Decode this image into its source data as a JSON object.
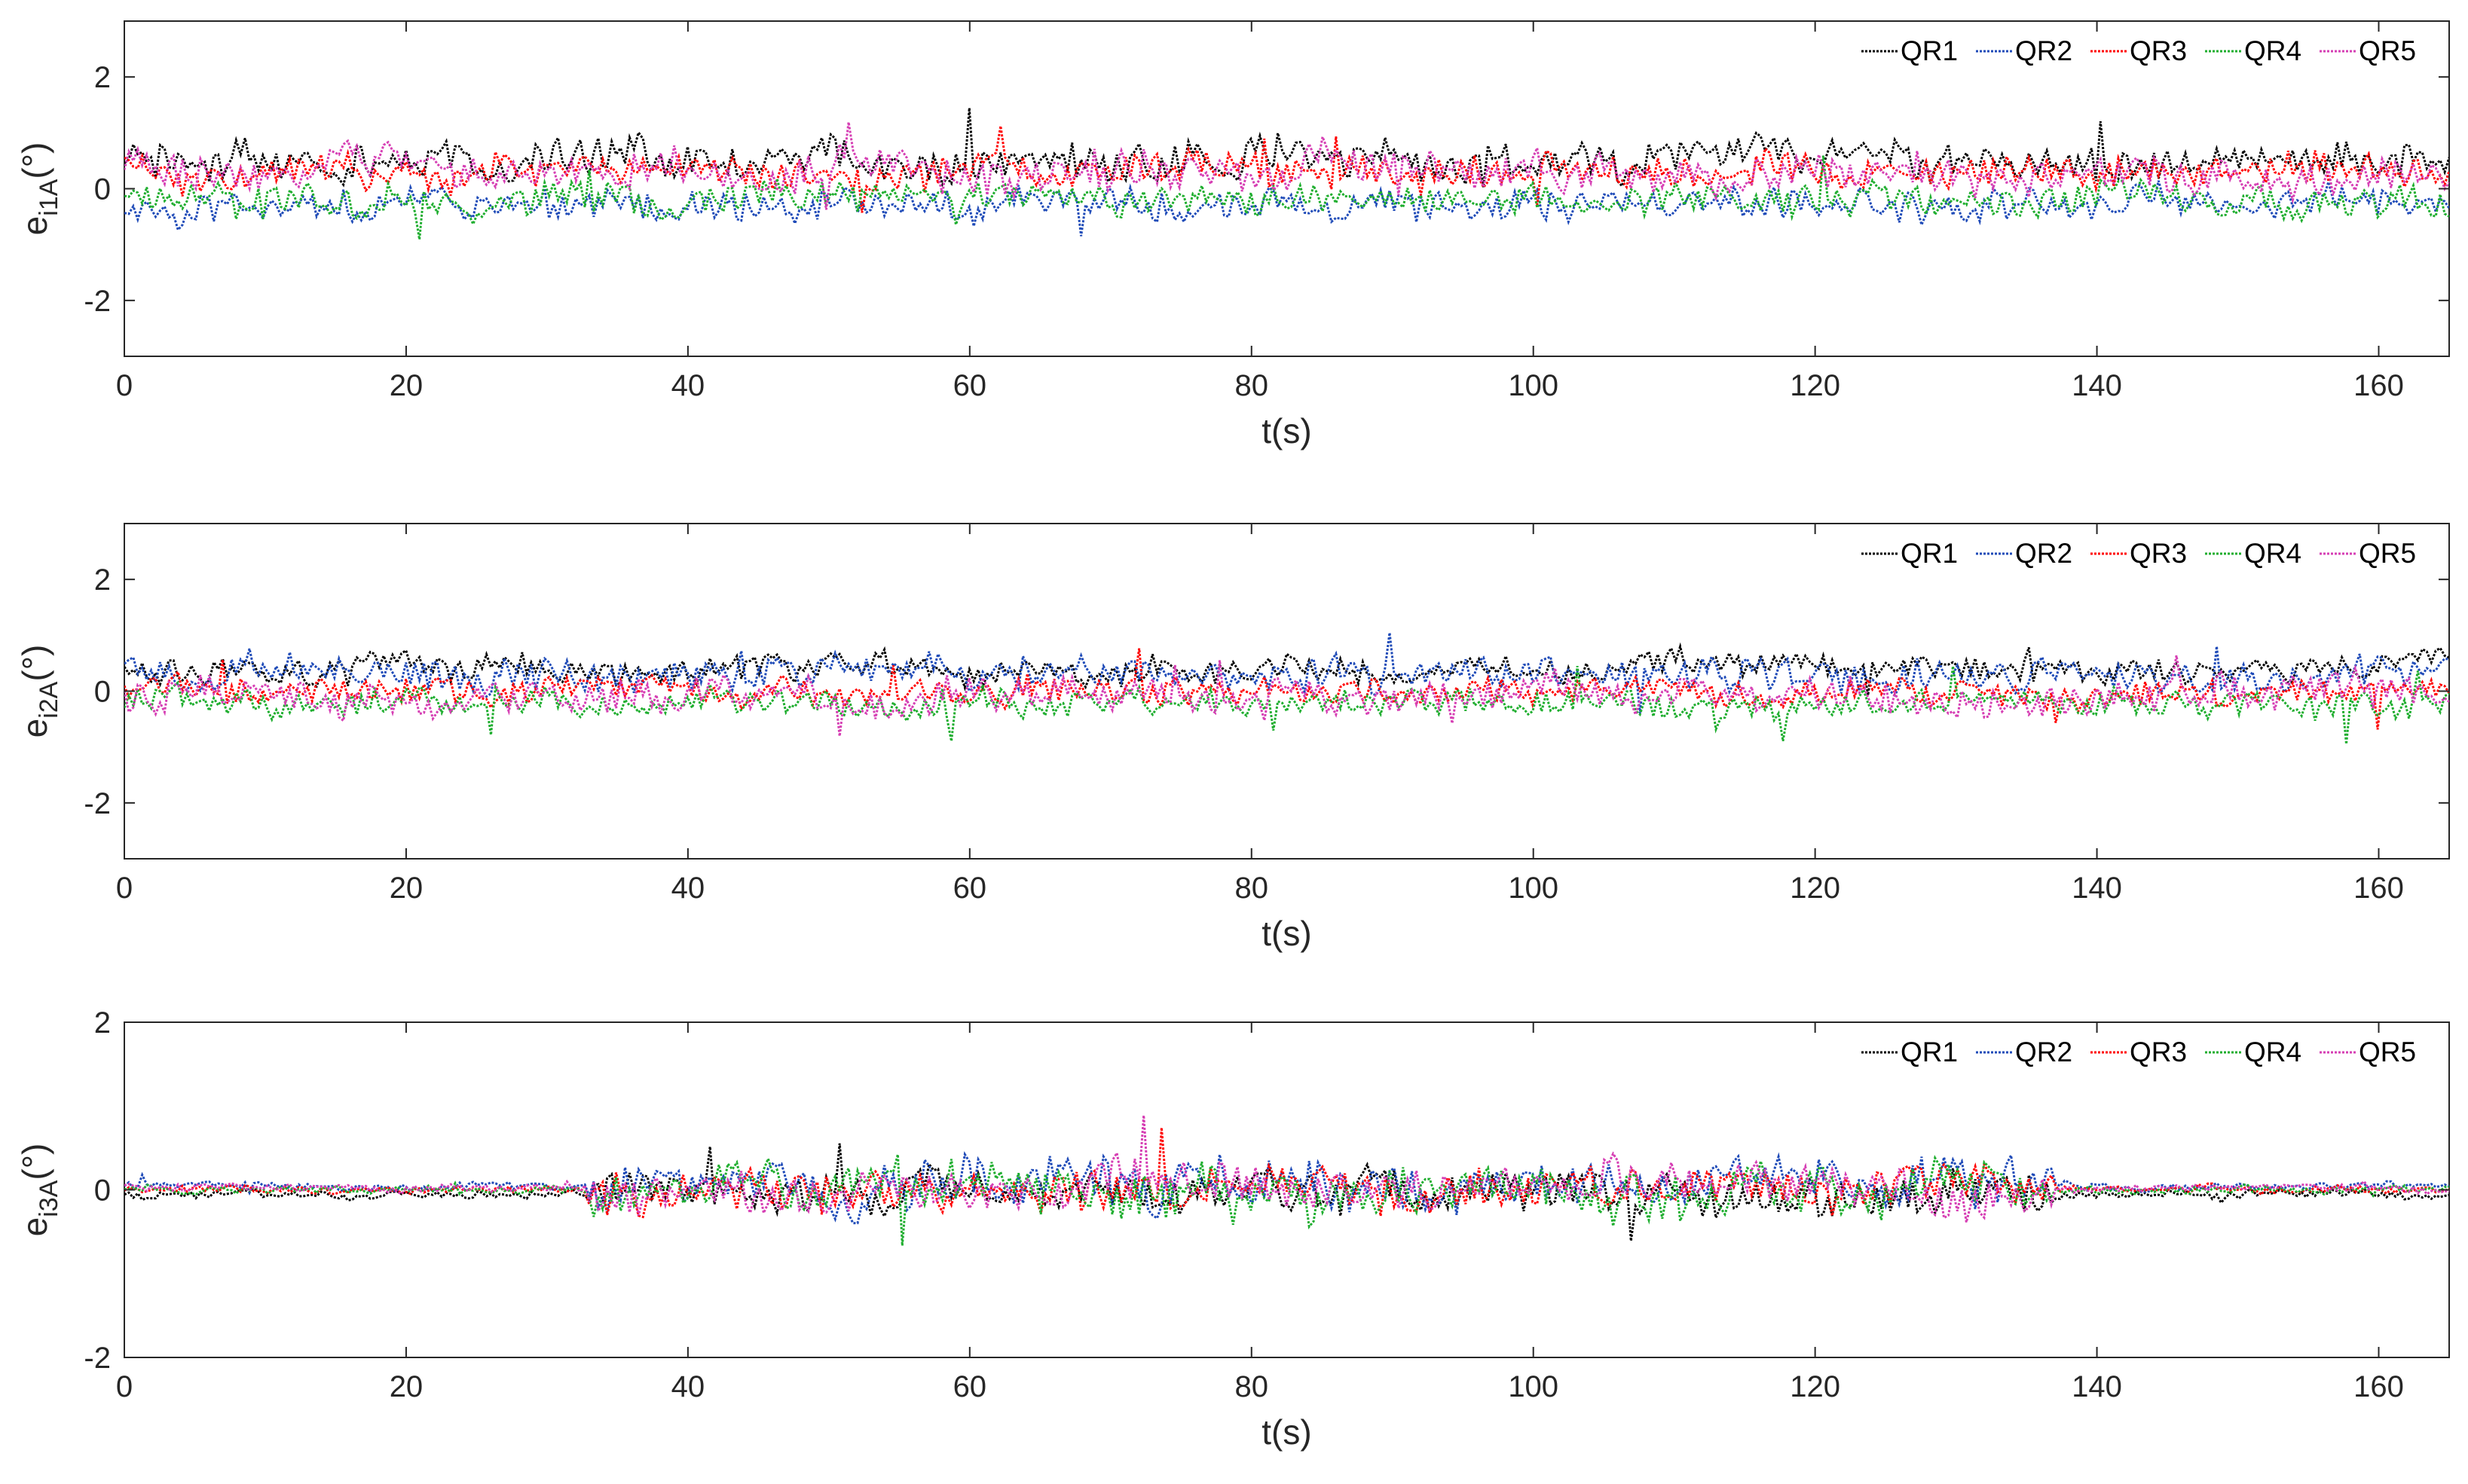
{
  "chart_data": [
    {
      "type": "line",
      "ylabel_main": "e",
      "ylabel_sub": "i1A",
      "ylabel_unit": "(°)",
      "xlabel": "t(s)",
      "xlim": [
        0,
        165
      ],
      "ylim": [
        -3,
        3
      ],
      "xticks": [
        0,
        20,
        40,
        60,
        80,
        100,
        120,
        140,
        160
      ],
      "yticks": [
        -2,
        0,
        2
      ],
      "legend_position": "top-right",
      "legend": [
        "QR1",
        "QR2",
        "QR3",
        "QR4",
        "QR5"
      ],
      "series_profile": [
        {
          "name": "QR1",
          "mean": 0.5,
          "noise_amplitude": 0.35
        },
        {
          "name": "QR2",
          "mean": -0.3,
          "noise_amplitude": 0.3
        },
        {
          "name": "QR3",
          "mean": 0.3,
          "noise_amplitude": 0.3
        },
        {
          "name": "QR4",
          "mean": -0.2,
          "noise_amplitude": 0.3
        },
        {
          "name": "QR5",
          "mean": 0.3,
          "noise_amplitude": 0.35
        }
      ]
    },
    {
      "type": "line",
      "ylabel_main": "e",
      "ylabel_sub": "i2A",
      "ylabel_unit": "(°)",
      "xlabel": "t(s)",
      "xlim": [
        0,
        165
      ],
      "ylim": [
        -3,
        3
      ],
      "xticks": [
        0,
        20,
        40,
        60,
        80,
        100,
        120,
        140,
        160
      ],
      "yticks": [
        -2,
        0,
        2
      ],
      "legend_position": "top-right",
      "legend": [
        "QR1",
        "QR2",
        "QR3",
        "QR4",
        "QR5"
      ],
      "series_profile": [
        {
          "name": "QR1",
          "mean": 0.4,
          "noise_amplitude": 0.25
        },
        {
          "name": "QR2",
          "mean": 0.3,
          "noise_amplitude": 0.3
        },
        {
          "name": "QR3",
          "mean": 0.0,
          "noise_amplitude": 0.25
        },
        {
          "name": "QR4",
          "mean": -0.2,
          "noise_amplitude": 0.25
        },
        {
          "name": "QR5",
          "mean": -0.1,
          "noise_amplitude": 0.3
        }
      ]
    },
    {
      "type": "line",
      "ylabel_main": "e",
      "ylabel_sub": "i3A",
      "ylabel_unit": "(°)",
      "xlabel": "t(s)",
      "xlim": [
        0,
        165
      ],
      "ylim": [
        -2,
        2
      ],
      "xticks": [
        0,
        20,
        40,
        60,
        80,
        100,
        120,
        140,
        160
      ],
      "yticks": [
        -2,
        0,
        2
      ],
      "legend_position": "top-right",
      "legend": [
        "QR1",
        "QR2",
        "QR3",
        "QR4",
        "QR5"
      ],
      "series_profile": [
        {
          "name": "QR1",
          "mean": -0.05,
          "noise_amplitude": 0.25
        },
        {
          "name": "QR2",
          "mean": 0.05,
          "noise_amplitude": 0.3
        },
        {
          "name": "QR3",
          "mean": 0.0,
          "noise_amplitude": 0.25
        },
        {
          "name": "QR4",
          "mean": 0.0,
          "noise_amplitude": 0.3
        },
        {
          "name": "QR5",
          "mean": 0.02,
          "noise_amplitude": 0.25
        }
      ],
      "quiet_interval_noise": 0.05,
      "active_interval": [
        33,
        137
      ]
    }
  ],
  "colors": {
    "QR1": "#000000",
    "QR2": "#1f4bb8",
    "QR3": "#ff0000",
    "QR4": "#1fae2f",
    "QR5": "#d63fb4",
    "axis": "#262626"
  }
}
